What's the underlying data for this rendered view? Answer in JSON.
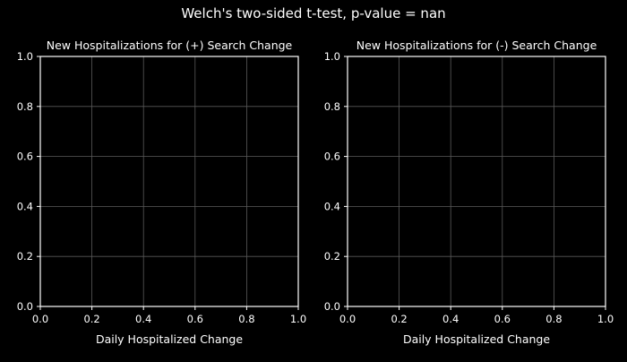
{
  "figure": {
    "suptitle": "Welch's two-sided t-test, p-value = nan",
    "background": "#000000",
    "text_color": "#ffffff",
    "grid_color": "#5a5a5a"
  },
  "chart_data": [
    {
      "type": "histogram",
      "title": "New Hospitalizations for (+) Search Change",
      "xlabel": "Daily Hospitalized Change",
      "ylabel": "",
      "xlim": [
        0,
        1
      ],
      "ylim": [
        0,
        1
      ],
      "xticks": [
        "0.0",
        "0.2",
        "0.4",
        "0.6",
        "0.8",
        "1.0"
      ],
      "yticks": [
        "0.0",
        "0.2",
        "0.4",
        "0.6",
        "0.8",
        "1.0"
      ],
      "grid": true,
      "series": []
    },
    {
      "type": "histogram",
      "title": "New Hospitalizations for (-) Search Change",
      "xlabel": "Daily Hospitalized Change",
      "ylabel": "",
      "xlim": [
        0,
        1
      ],
      "ylim": [
        0,
        1
      ],
      "xticks": [
        "0.0",
        "0.2",
        "0.4",
        "0.6",
        "0.8",
        "1.0"
      ],
      "yticks": [
        "0.0",
        "0.2",
        "0.4",
        "0.6",
        "0.8",
        "1.0"
      ],
      "grid": true,
      "series": []
    }
  ]
}
